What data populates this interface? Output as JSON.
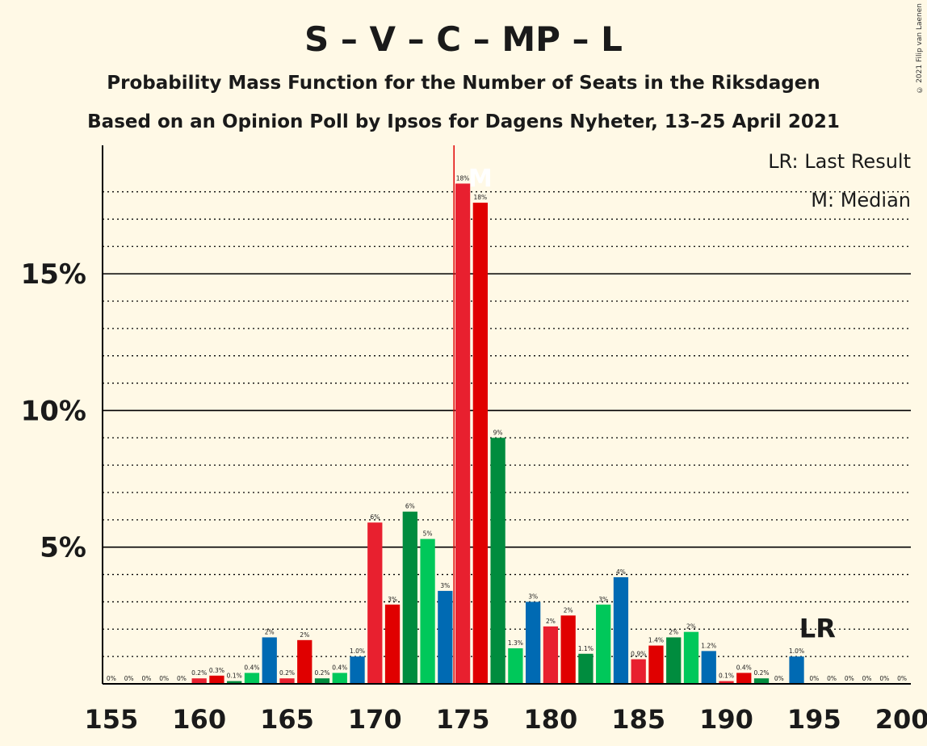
{
  "header": {
    "title": "S – V – C – MP – L",
    "subtitle": "Probability Mass Function for the Number of Seats in the Riksdagen",
    "subtitle2": "Based on an Opinion Poll by Ipsos for Dagens Nyheter, 13–25 April 2021",
    "copyright": "© 2021 Filip van Laenen"
  },
  "legend": {
    "lr": "LR: Last Result",
    "m": "M: Median"
  },
  "chart_data": {
    "type": "bar",
    "xlim": [
      155,
      200
    ],
    "ylim": [
      0,
      19.7
    ],
    "x_ticks": [
      155,
      160,
      165,
      170,
      175,
      180,
      185,
      190,
      195,
      200
    ],
    "y_ticks": [
      {
        "value": 5,
        "label": "5%"
      },
      {
        "value": 10,
        "label": "10%"
      },
      {
        "value": 15,
        "label": "15%"
      }
    ],
    "minor_gridlines": [
      1,
      2,
      3,
      4,
      6,
      7,
      8,
      9,
      11,
      12,
      13,
      14,
      16,
      17,
      18
    ],
    "majority_line": 175,
    "median": {
      "seat": 176,
      "label": "M"
    },
    "last_result": {
      "seat": 195,
      "label": "LR"
    },
    "colors": [
      "#E8202F",
      "#E00000",
      "#008C3E",
      "#00C85A",
      "#006AB3"
    ],
    "bars": [
      {
        "seat": 155,
        "value": 0,
        "label": "0%"
      },
      {
        "seat": 156,
        "value": 0,
        "label": "0%"
      },
      {
        "seat": 157,
        "value": 0,
        "label": "0%"
      },
      {
        "seat": 158,
        "value": 0,
        "label": "0%"
      },
      {
        "seat": 159,
        "value": 0,
        "label": "0%"
      },
      {
        "seat": 160,
        "value": 0.2,
        "label": "0.2%"
      },
      {
        "seat": 161,
        "value": 0.3,
        "label": "0.3%"
      },
      {
        "seat": 162,
        "value": 0.1,
        "label": "0.1%"
      },
      {
        "seat": 163,
        "value": 0.4,
        "label": "0.4%"
      },
      {
        "seat": 164,
        "value": 1.7,
        "label": "2%"
      },
      {
        "seat": 165,
        "value": 0.2,
        "label": "0.2%"
      },
      {
        "seat": 166,
        "value": 1.6,
        "label": "2%"
      },
      {
        "seat": 167,
        "value": 0.2,
        "label": "0.2%"
      },
      {
        "seat": 168,
        "value": 0.4,
        "label": "0.4%"
      },
      {
        "seat": 169,
        "value": 1.0,
        "label": "1.0%"
      },
      {
        "seat": 170,
        "value": 5.9,
        "label": "6%"
      },
      {
        "seat": 171,
        "value": 2.9,
        "label": "3%"
      },
      {
        "seat": 172,
        "value": 6.3,
        "label": "6%"
      },
      {
        "seat": 173,
        "value": 5.3,
        "label": "5%"
      },
      {
        "seat": 174,
        "value": 3.4,
        "label": "3%"
      },
      {
        "seat": 175,
        "value": 18.3,
        "label": "18%"
      },
      {
        "seat": 176,
        "value": 17.6,
        "label": "18%"
      },
      {
        "seat": 177,
        "value": 9.0,
        "label": "9%"
      },
      {
        "seat": 178,
        "value": 1.3,
        "label": "1.3%"
      },
      {
        "seat": 179,
        "value": 3.0,
        "label": "3%"
      },
      {
        "seat": 180,
        "value": 2.1,
        "label": "2%"
      },
      {
        "seat": 181,
        "value": 2.5,
        "label": "2%"
      },
      {
        "seat": 182,
        "value": 1.1,
        "label": "1.1%"
      },
      {
        "seat": 183,
        "value": 2.9,
        "label": "3%"
      },
      {
        "seat": 184,
        "value": 3.9,
        "label": "4%"
      },
      {
        "seat": 185,
        "value": 0.9,
        "label": "0.9%"
      },
      {
        "seat": 186,
        "value": 1.4,
        "label": "1.4%"
      },
      {
        "seat": 187,
        "value": 1.7,
        "label": "2%"
      },
      {
        "seat": 188,
        "value": 1.9,
        "label": "2%"
      },
      {
        "seat": 189,
        "value": 1.2,
        "label": "1.2%"
      },
      {
        "seat": 190,
        "value": 0.1,
        "label": "0.1%"
      },
      {
        "seat": 191,
        "value": 0.4,
        "label": "0.4%"
      },
      {
        "seat": 192,
        "value": 0.2,
        "label": "0.2%"
      },
      {
        "seat": 193,
        "value": 0,
        "label": "0%"
      },
      {
        "seat": 194,
        "value": 1.0,
        "label": "1.0%"
      },
      {
        "seat": 195,
        "value": 0,
        "label": "0%"
      },
      {
        "seat": 196,
        "value": 0,
        "label": "0%"
      },
      {
        "seat": 197,
        "value": 0,
        "label": "0%"
      },
      {
        "seat": 198,
        "value": 0,
        "label": "0%"
      },
      {
        "seat": 199,
        "value": 0,
        "label": "0%"
      },
      {
        "seat": 200,
        "value": 0,
        "label": "0%"
      }
    ]
  }
}
